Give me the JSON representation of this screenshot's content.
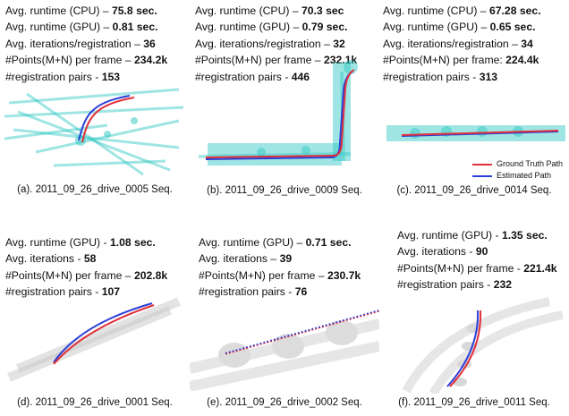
{
  "colors": {
    "ground_truth": "#e0303a",
    "estimated": "#2b3fd8",
    "pointcloud_top": "#2ac6c0",
    "pointcloud_bottom": "#9a9a9a"
  },
  "legend": {
    "ground_truth": "Ground Truth Path",
    "estimated": "Estimated Path"
  },
  "panels": [
    {
      "caption": "(a). 2011_09_26_drive_0005 Seq.",
      "stats": [
        {
          "label": "Avg. runtime (CPU) – ",
          "value": "75.8 sec."
        },
        {
          "label": "Avg. runtime (GPU) – ",
          "value": "0.81 sec."
        },
        {
          "label": "Avg. iterations/registration – ",
          "value": "36"
        },
        {
          "label": "#Points(M+N) per frame – ",
          "value": "234.2k"
        },
        {
          "label": "#registration pairs - ",
          "value": "153"
        }
      ]
    },
    {
      "caption": "(b). 2011_09_26_drive_0009 Seq.",
      "stats": [
        {
          "label": "Avg. runtime (CPU) – ",
          "value": "70.3 sec"
        },
        {
          "label": "Avg. runtime (GPU) – ",
          "value": "0.79 sec."
        },
        {
          "label": "Avg. iterations/registration – ",
          "value": "32"
        },
        {
          "label": "#Points(M+N) per frame – ",
          "value": "232.1k"
        },
        {
          "label": "#registration pairs - ",
          "value": "446"
        }
      ]
    },
    {
      "caption": "(c). 2011_09_26_drive_0014 Seq.",
      "stats": [
        {
          "label": "Avg. runtime (CPU) – ",
          "value": "67.28 sec."
        },
        {
          "label": "Avg. runtime (GPU) – ",
          "value": "0.65 sec."
        },
        {
          "label": "Avg. iterations/registration – ",
          "value": "34"
        },
        {
          "label": "#Points(M+N) per frame: ",
          "value": "224.4k"
        },
        {
          "label": "#registration pairs - ",
          "value": "313"
        }
      ]
    },
    {
      "caption": "(d). 2011_09_26_drive_0001 Seq.",
      "stats": [
        {
          "label": "Avg. runtime (GPU) - ",
          "value": "1.08 sec."
        },
        {
          "label": "Avg. iterations - ",
          "value": "58"
        },
        {
          "label": "#Points(M+N) per frame – ",
          "value": "202.8k"
        },
        {
          "label": "#registration pairs - ",
          "value": "107"
        }
      ]
    },
    {
      "caption": "(e). 2011_09_26_drive_0002 Seq.",
      "stats": [
        {
          "label": "Avg. runtime (GPU) – ",
          "value": "0.71 sec."
        },
        {
          "label": "Avg. iterations – ",
          "value": "39"
        },
        {
          "label": "#Points(M+N) per frame – ",
          "value": "230.7k"
        },
        {
          "label": "#registration pairs - ",
          "value": "76"
        }
      ]
    },
    {
      "caption": "(f). 2011_09_26_drive_0011 Seq.",
      "stats": [
        {
          "label": "Avg. runtime (GPU) - ",
          "value": "1.35 sec."
        },
        {
          "label": "Avg. iterations - ",
          "value": "90"
        },
        {
          "label": "#Points(M+N) per frame - ",
          "value": "221.4k"
        },
        {
          "label": "#registration pairs - ",
          "value": "232"
        }
      ]
    }
  ]
}
